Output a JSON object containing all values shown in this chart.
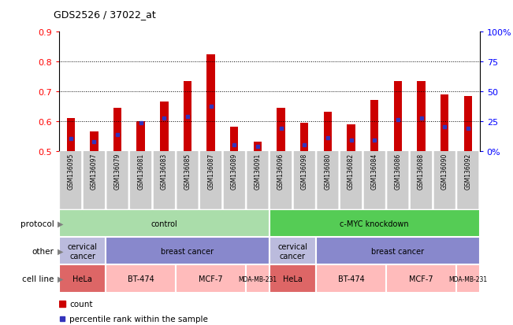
{
  "title": "GDS2526 / 37022_at",
  "samples": [
    "GSM136095",
    "GSM136097",
    "GSM136079",
    "GSM136081",
    "GSM136083",
    "GSM136085",
    "GSM136087",
    "GSM136089",
    "GSM136091",
    "GSM136096",
    "GSM136098",
    "GSM136080",
    "GSM136082",
    "GSM136084",
    "GSM136086",
    "GSM136088",
    "GSM136090",
    "GSM136092"
  ],
  "bar_heights": [
    0.61,
    0.565,
    0.645,
    0.6,
    0.665,
    0.735,
    0.825,
    0.58,
    0.53,
    0.645,
    0.595,
    0.63,
    0.59,
    0.67,
    0.735,
    0.735,
    0.69,
    0.685
  ],
  "blue_positions": [
    0.54,
    0.53,
    0.555,
    0.595,
    0.61,
    0.615,
    0.65,
    0.52,
    0.515,
    0.575,
    0.52,
    0.545,
    0.535,
    0.535,
    0.605,
    0.61,
    0.58,
    0.575
  ],
  "ymin": 0.5,
  "ymax": 0.9,
  "yticks": [
    0.5,
    0.6,
    0.7,
    0.8,
    0.9
  ],
  "ytick_labels": [
    "0.5",
    "0.6",
    "0.7",
    "0.8",
    "0.9"
  ],
  "y2ticks": [
    0.5,
    0.6,
    0.7,
    0.8,
    0.9
  ],
  "y2tick_labels": [
    "0%",
    "25",
    "50",
    "75",
    "100%"
  ],
  "bar_color": "#cc0000",
  "blue_color": "#3333bb",
  "protocol_row": {
    "label": "protocol",
    "groups": [
      {
        "text": "control",
        "start": 0,
        "end": 9,
        "color": "#aaddaa"
      },
      {
        "text": "c-MYC knockdown",
        "start": 9,
        "end": 18,
        "color": "#55cc55"
      }
    ]
  },
  "other_row": {
    "label": "other",
    "groups": [
      {
        "text": "cervical\ncancer",
        "start": 0,
        "end": 2,
        "color": "#bbbbdd"
      },
      {
        "text": "breast cancer",
        "start": 2,
        "end": 9,
        "color": "#8888cc"
      },
      {
        "text": "cervical\ncancer",
        "start": 9,
        "end": 11,
        "color": "#bbbbdd"
      },
      {
        "text": "breast cancer",
        "start": 11,
        "end": 18,
        "color": "#8888cc"
      }
    ]
  },
  "cellline_row": {
    "label": "cell line",
    "groups": [
      {
        "text": "HeLa",
        "start": 0,
        "end": 2,
        "color": "#dd6666"
      },
      {
        "text": "BT-474",
        "start": 2,
        "end": 5,
        "color": "#ffbbbb"
      },
      {
        "text": "MCF-7",
        "start": 5,
        "end": 8,
        "color": "#ffbbbb"
      },
      {
        "text": "MDA-MB-231",
        "start": 8,
        "end": 9,
        "color": "#ffbbbb"
      },
      {
        "text": "HeLa",
        "start": 9,
        "end": 11,
        "color": "#dd6666"
      },
      {
        "text": "BT-474",
        "start": 11,
        "end": 14,
        "color": "#ffbbbb"
      },
      {
        "text": "MCF-7",
        "start": 14,
        "end": 17,
        "color": "#ffbbbb"
      },
      {
        "text": "MDA-MB-231",
        "start": 17,
        "end": 18,
        "color": "#ffbbbb"
      }
    ]
  },
  "background_color": "#ffffff",
  "plot_bg_color": "#ffffff",
  "tick_bg_color": "#cccccc"
}
